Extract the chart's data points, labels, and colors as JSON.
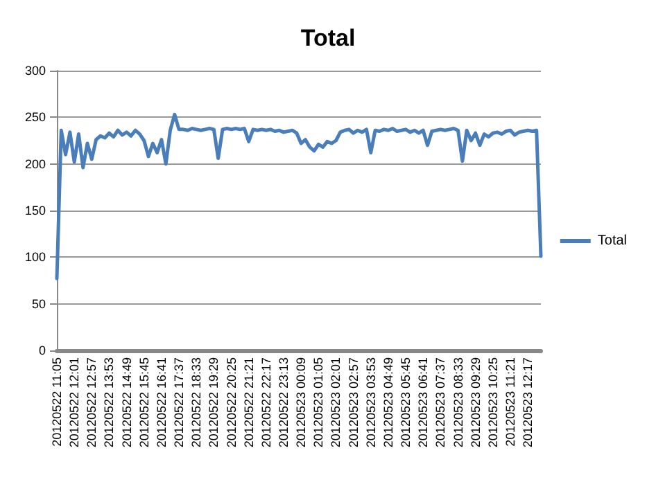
{
  "chart_data": {
    "type": "line",
    "title": "Total",
    "categories": [
      "20120522 11:05",
      null,
      null,
      null,
      "20120522 12:01",
      null,
      null,
      null,
      "20120522 12:57",
      null,
      null,
      null,
      "20120522 13:53",
      null,
      null,
      null,
      "20120522 14:49",
      null,
      null,
      null,
      "20120522 15:45",
      null,
      null,
      null,
      "20120522 16:41",
      null,
      null,
      null,
      "20120522 17:37",
      null,
      null,
      null,
      "20120522 18:33",
      null,
      null,
      null,
      "20120522 19:29",
      null,
      null,
      null,
      "20120522 20:25",
      null,
      null,
      null,
      "20120522 21:21",
      null,
      null,
      null,
      "20120522 22:17",
      null,
      null,
      null,
      "20120522 23:13",
      null,
      null,
      null,
      "20120523 00:09",
      null,
      null,
      null,
      "20120523 01:05",
      null,
      null,
      null,
      "20120523 02:01",
      null,
      null,
      null,
      "20120523 02:57",
      null,
      null,
      null,
      "20120523 03:53",
      null,
      null,
      null,
      "20120523 04:49",
      null,
      null,
      null,
      "20120523 05:45",
      null,
      null,
      null,
      "20120523 06:41",
      null,
      null,
      null,
      "20120523 07:37",
      null,
      null,
      null,
      "20120523 08:33",
      null,
      null,
      null,
      "20120523 09:29",
      null,
      null,
      null,
      "20120523 10:25",
      null,
      null,
      null,
      "20120523 11:21",
      null,
      null,
      null,
      "20120523 12:17",
      null,
      null,
      null
    ],
    "series": [
      {
        "name": "Total",
        "color": "#4a7ebb",
        "values": [
          77,
          236,
          210,
          234,
          202,
          232,
          196,
          222,
          205,
          226,
          230,
          228,
          233,
          229,
          236,
          231,
          234,
          230,
          236,
          232,
          225,
          208,
          222,
          212,
          226,
          200,
          236,
          253,
          237,
          237,
          236,
          238,
          237,
          236,
          237,
          238,
          237,
          206,
          237,
          238,
          237,
          238,
          237,
          238,
          224,
          237,
          236,
          237,
          236,
          237,
          235,
          236,
          234,
          235,
          236,
          233,
          222,
          226,
          218,
          214,
          221,
          218,
          224,
          222,
          225,
          234,
          236,
          237,
          233,
          236,
          234,
          237,
          212,
          236,
          235,
          237,
          236,
          238,
          235,
          236,
          237,
          234,
          236,
          233,
          236,
          220,
          235,
          236,
          237,
          236,
          237,
          238,
          236,
          203,
          236,
          225,
          233,
          220,
          232,
          229,
          233,
          234,
          232,
          235,
          236,
          231,
          234,
          235,
          236,
          235,
          236,
          101
        ]
      }
    ],
    "ylim": [
      0,
      300
    ],
    "yticks": [
      0,
      50,
      100,
      150,
      200,
      250,
      300
    ],
    "grid": "y",
    "legend": "right",
    "marker": "none",
    "line_style": "solid"
  }
}
